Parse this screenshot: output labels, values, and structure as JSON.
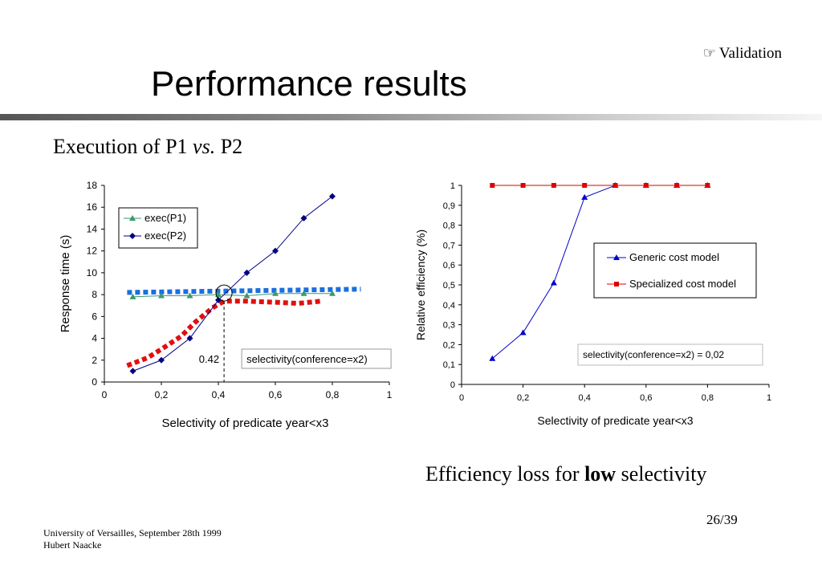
{
  "header": {
    "section_label": "Validation",
    "section_icon": "hand-pointer-icon",
    "title": "Performance results"
  },
  "subtitle": {
    "prefix": "Execution of  P1 ",
    "vs": "vs.",
    "suffix": " P2"
  },
  "conclusion": {
    "prefix": "Efficiency loss for ",
    "bold": "low",
    "suffix": " selectivity"
  },
  "footer": {
    "page": "26/39",
    "line1": "University of Versailles, September 28th 1999",
    "line2": "Hubert Naacke"
  },
  "chart_data": [
    {
      "type": "line",
      "xlabel": "Selectivity of predicate year<x3",
      "ylabel": "Response time (s)",
      "xlim": [
        0,
        1
      ],
      "ylim": [
        0,
        18
      ],
      "x_ticks": [
        "0",
        "0,2",
        "0,4",
        "0,6",
        "0,8",
        "1"
      ],
      "y_ticks": [
        "0",
        "2",
        "4",
        "6",
        "8",
        "10",
        "12",
        "14",
        "16",
        "18"
      ],
      "legend_position": "top-left",
      "series": [
        {
          "name": "exec(P1)",
          "color": "#3a9a6a",
          "marker": "triangle",
          "x": [
            0.1,
            0.2,
            0.3,
            0.4,
            0.5,
            0.6,
            0.7,
            0.8
          ],
          "y": [
            7.8,
            7.9,
            7.9,
            8.0,
            7.9,
            8.1,
            8.1,
            8.1
          ]
        },
        {
          "name": "exec(P2)",
          "color": "#000080",
          "marker": "diamond",
          "x": [
            0.1,
            0.2,
            0.3,
            0.4,
            0.5,
            0.6,
            0.7,
            0.8
          ],
          "y": [
            1.0,
            2.0,
            4.0,
            7.5,
            10.0,
            12.0,
            15.0,
            17.0
          ]
        }
      ],
      "overlays": [
        {
          "color": "#1a6fdf",
          "style": "dotted-thick",
          "x": [
            0.08,
            0.9
          ],
          "y": [
            8.2,
            8.5
          ]
        },
        {
          "color": "#e01010",
          "style": "dotted-thick",
          "x": [
            0.08,
            0.15,
            0.2,
            0.27,
            0.32,
            0.38,
            0.42,
            0.5,
            0.6,
            0.68,
            0.76
          ],
          "y": [
            1.5,
            2.2,
            3.0,
            4.2,
            5.5,
            6.8,
            7.4,
            7.4,
            7.3,
            7.2,
            7.4
          ]
        }
      ],
      "annotations": {
        "crossover_x": 0.42,
        "crossover_y": 8.0,
        "crossover_label": "0.42",
        "note": "selectivity(conference=x2)"
      }
    },
    {
      "type": "line",
      "xlabel": "Selectivity of predicate year<x3",
      "ylabel": "Relative efficiency (%)",
      "xlim": [
        0,
        1
      ],
      "ylim": [
        0,
        1
      ],
      "x_ticks": [
        "0",
        "0,2",
        "0,4",
        "0,6",
        "0,8",
        "1"
      ],
      "y_ticks": [
        "0",
        "0,1",
        "0,2",
        "0,3",
        "0,4",
        "0,5",
        "0,6",
        "0,7",
        "0,8",
        "0,9",
        "1"
      ],
      "legend_position": "right",
      "series": [
        {
          "name": "Generic cost model",
          "color": "#0000cc",
          "marker": "triangle",
          "x": [
            0.1,
            0.2,
            0.3,
            0.4,
            0.5,
            0.6,
            0.7,
            0.8
          ],
          "y": [
            0.13,
            0.26,
            0.51,
            0.94,
            1.0,
            1.0,
            1.0,
            1.0
          ]
        },
        {
          "name": "Specialized cost model",
          "color": "#dd0000",
          "marker": "square",
          "x": [
            0.1,
            0.2,
            0.3,
            0.4,
            0.5,
            0.6,
            0.7,
            0.8
          ],
          "y": [
            1.0,
            1.0,
            1.0,
            1.0,
            1.0,
            1.0,
            1.0,
            1.0
          ]
        }
      ],
      "annotations": {
        "note": "selectivity(conference=x2) =  0,02"
      }
    }
  ]
}
